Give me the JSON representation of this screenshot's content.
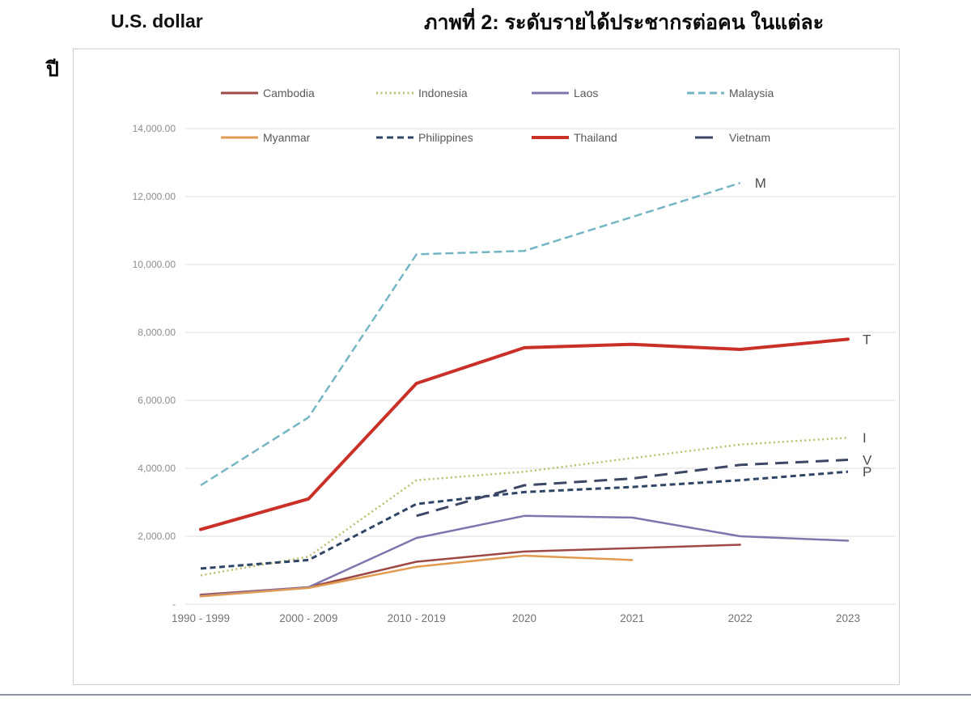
{
  "page": {
    "unit_label": "U.S. dollar",
    "title_line1": "ภาพที่ 2:  ระดับรายได้ประชากรต่อคน ในแต่ละ",
    "title_line2": "ปี"
  },
  "chart_data": {
    "type": "line",
    "title": "ภาพที่ 2: ระดับรายได้ประชากรต่อคน ในแต่ละปี",
    "ylabel": "U.S. dollar",
    "xlabel": "",
    "grid": true,
    "legend_position": "top",
    "ylim": [
      0,
      14000
    ],
    "categories": [
      "1990 - 1999",
      "2000 - 2009",
      "2010 - 2019",
      "2020",
      "2021",
      "2022",
      "2023"
    ],
    "y_ticks": [
      {
        "value": 14000,
        "label": "14,000.00"
      },
      {
        "value": 12000,
        "label": "12,000.00"
      },
      {
        "value": 10000,
        "label": "10,000.00"
      },
      {
        "value": 8000,
        "label": "8,000.00"
      },
      {
        "value": 6000,
        "label": "6,000.00"
      },
      {
        "value": 4000,
        "label": "4,000.00"
      },
      {
        "value": 2000,
        "label": "2,000.00"
      },
      {
        "value": 0,
        "label": "-"
      }
    ],
    "series": [
      {
        "name": "Cambodia",
        "color": "#9D4A46",
        "style": "solid",
        "width": 2.5,
        "values": [
          280,
          500,
          1250,
          1550,
          1650,
          1750,
          null
        ]
      },
      {
        "name": "Indonesia",
        "color": "#BDBD6E",
        "style": "dotted",
        "width": 2.5,
        "values": [
          850,
          1400,
          3650,
          3900,
          4300,
          4700,
          4900
        ]
      },
      {
        "name": "Laos",
        "color": "#8174AC",
        "style": "solid",
        "width": 2.5,
        "values": [
          250,
          500,
          1950,
          2600,
          2550,
          2000,
          1870
        ]
      },
      {
        "name": "Malaysia",
        "color": "#74B6C3",
        "style": "dashed",
        "width": 2.5,
        "values": [
          3500,
          5500,
          10300,
          10400,
          11400,
          12400,
          null
        ]
      },
      {
        "name": "Myanmar",
        "color": "#E09B51",
        "style": "solid",
        "width": 2.5,
        "values": [
          230,
          480,
          1100,
          1430,
          1300,
          null,
          null
        ]
      },
      {
        "name": "Philippines",
        "color": "#2F4565",
        "style": "dashed-short",
        "width": 3,
        "values": [
          1050,
          1300,
          2950,
          3300,
          3450,
          3650,
          3900
        ]
      },
      {
        "name": "Thailand",
        "color": "#C93028",
        "style": "solid",
        "width": 4,
        "values": [
          2200,
          3100,
          6500,
          7550,
          7650,
          7500,
          7800
        ]
      },
      {
        "name": "Vietnam",
        "color": "#3B4764",
        "style": "long-dash",
        "width": 3,
        "values": [
          null,
          null,
          2600,
          3500,
          3700,
          4100,
          4250
        ]
      }
    ],
    "end_labels": [
      {
        "letter": "M",
        "series": "Malaysia"
      },
      {
        "letter": "T",
        "series": "Thailand"
      },
      {
        "letter": "I",
        "series": "Indonesia"
      },
      {
        "letter": "V",
        "series": "Vietnam"
      },
      {
        "letter": "P",
        "series": "Philippines"
      }
    ]
  }
}
